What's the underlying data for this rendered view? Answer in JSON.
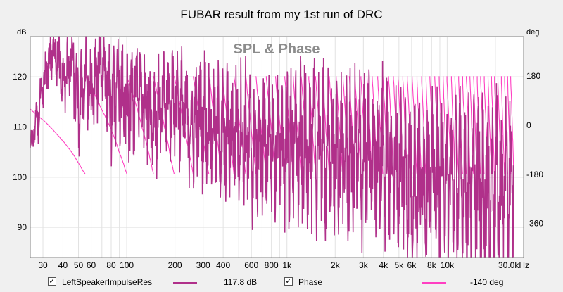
{
  "chart_data": {
    "type": "line",
    "title": "FUBAR result from my 1st run of DRC",
    "watermark": "SPL & Phase",
    "left_axis": {
      "unit": "dB",
      "range": [
        84,
        128
      ],
      "ticks": [
        {
          "v": 120,
          "label": "120"
        },
        {
          "v": 110,
          "label": "110"
        },
        {
          "v": 100,
          "label": "100"
        },
        {
          "v": 90,
          "label": "90"
        }
      ]
    },
    "right_axis": {
      "unit": "deg",
      "range": [
        -485,
        325
      ],
      "ticks": [
        {
          "v": 180,
          "label": "180"
        },
        {
          "v": 0,
          "label": "0"
        },
        {
          "v": -180,
          "label": "-180"
        },
        {
          "v": -360,
          "label": "-360"
        }
      ]
    },
    "x_axis": {
      "scale": "log",
      "range": [
        25,
        30000
      ],
      "ticks": [
        {
          "v": 30,
          "label": "30"
        },
        {
          "v": 40,
          "label": "40"
        },
        {
          "v": 50,
          "label": "50"
        },
        {
          "v": 60,
          "label": "60"
        },
        {
          "v": 80,
          "label": "80"
        },
        {
          "v": 100,
          "label": "100"
        },
        {
          "v": 200,
          "label": "200"
        },
        {
          "v": 300,
          "label": "300"
        },
        {
          "v": 400,
          "label": "400"
        },
        {
          "v": 600,
          "label": "600"
        },
        {
          "v": 800,
          "label": "800"
        },
        {
          "v": 1000,
          "label": "1k"
        },
        {
          "v": 2000,
          "label": "2k"
        },
        {
          "v": 3000,
          "label": "3k"
        },
        {
          "v": 4000,
          "label": "4k"
        },
        {
          "v": 5000,
          "label": "5k"
        },
        {
          "v": 6000,
          "label": "6k"
        },
        {
          "v": 8000,
          "label": "8k"
        },
        {
          "v": 10000,
          "label": "10k"
        },
        {
          "v": 30000,
          "label": "30.0kHz"
        }
      ],
      "gridlines": [
        30,
        40,
        50,
        60,
        70,
        80,
        90,
        100,
        200,
        300,
        400,
        500,
        600,
        700,
        800,
        900,
        1000,
        2000,
        3000,
        4000,
        5000,
        6000,
        7000,
        8000,
        9000,
        10000,
        20000
      ]
    },
    "grid": true,
    "series": [
      {
        "name": "LeftSpeakerImpulseRes",
        "axis": "left",
        "color": "#b0308a",
        "cursor_value": "117.8 dB",
        "x": [
          25,
          28,
          32,
          36,
          40,
          45,
          50,
          55,
          60,
          70,
          80,
          90,
          100,
          120,
          150,
          200,
          250,
          300,
          400,
          500,
          600,
          800,
          1000,
          1500,
          2000,
          3000,
          4000,
          5000,
          6000,
          8000,
          10000,
          15000,
          20000,
          26000
        ],
        "y": [
          106,
          112,
          122,
          126,
          118,
          124,
          113,
          120,
          116,
          124,
          114,
          118,
          112,
          118,
          112,
          116,
          110,
          112,
          108,
          110,
          106,
          106,
          106,
          106,
          104,
          104,
          104,
          102,
          100,
          100,
          100,
          98,
          98,
          98
        ],
        "spread": [
          2,
          5,
          6,
          7,
          7,
          9,
          10,
          10,
          10,
          10,
          11,
          11,
          12,
          12,
          12,
          12,
          13,
          14,
          14,
          15,
          16,
          16,
          17,
          17,
          18,
          18,
          18,
          18,
          18,
          18,
          18,
          19,
          19,
          19
        ]
      },
      {
        "name": "Phase",
        "axis": "right",
        "color": "#ff3fc2",
        "cursor_value": "-140 deg"
      }
    ]
  }
}
